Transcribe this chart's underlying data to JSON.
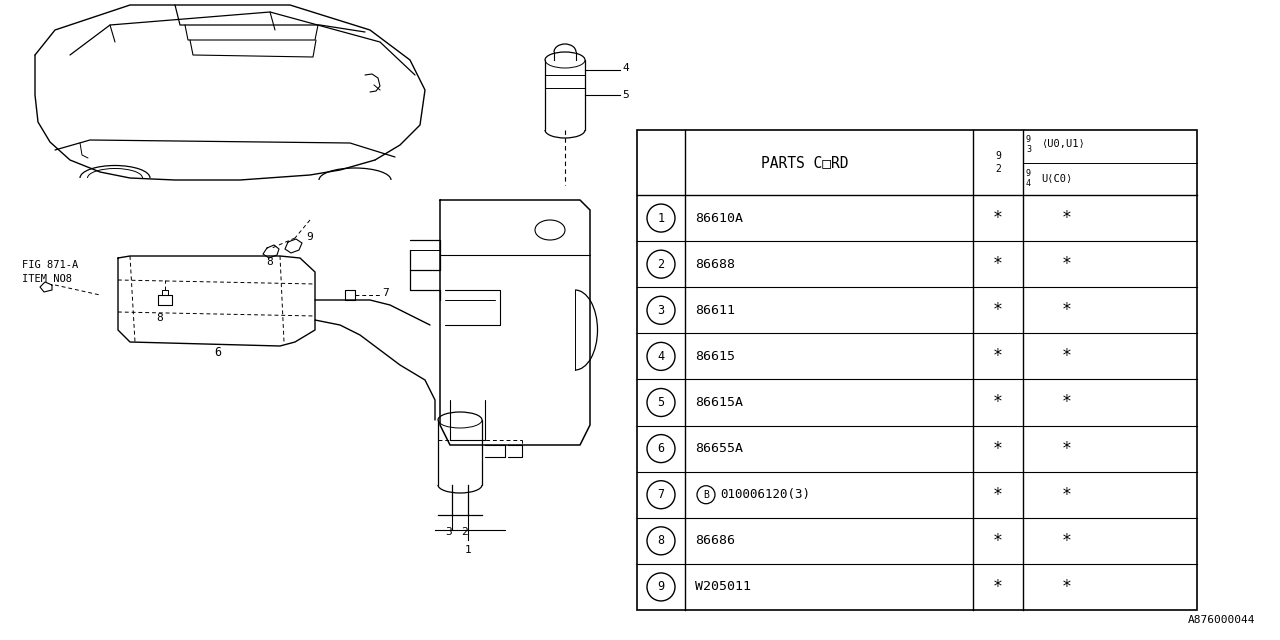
{
  "bg_color": "#ffffff",
  "parts_cord_label": "PARTS C□RD",
  "col3_header": "9\n2",
  "col4_top_num": "9\n3",
  "col4_top_txt": "⟨U0,U1⟩",
  "col4_bot_num": "9\n4",
  "col4_bot_txt": "U⟨C0⟩",
  "rows": [
    {
      "num": "1",
      "code": "86610A"
    },
    {
      "num": "2",
      "code": "86688"
    },
    {
      "num": "3",
      "code": "86611"
    },
    {
      "num": "4",
      "code": "86615"
    },
    {
      "num": "5",
      "code": "86615A"
    },
    {
      "num": "6",
      "code": "86655A"
    },
    {
      "num": "7",
      "code": "B010006120(3)"
    },
    {
      "num": "8",
      "code": "86686"
    },
    {
      "num": "9",
      "code": "W205011"
    }
  ],
  "fig_label": "FIG 871-A\nITEM NO8",
  "doc_number": "A876000044",
  "line_color": "#000000"
}
